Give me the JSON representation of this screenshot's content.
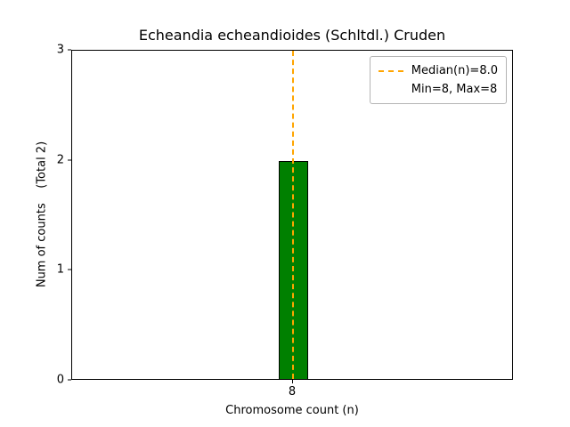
{
  "chart_data": {
    "type": "bar",
    "title": "Echeandia echeandioides (Schltdl.) Cruden",
    "xlabel": "Chromosome count (n)",
    "ylabel": "Num of counts    (Total 2)",
    "total_counts": 2,
    "categories": [
      "8"
    ],
    "values": [
      2
    ],
    "ylim": [
      0,
      3
    ],
    "yticks": [
      0,
      1,
      2,
      3
    ],
    "grid": false,
    "bar_color": "#008000",
    "bar_edge_color": "#000000",
    "median_line": {
      "x_category": "8",
      "value": 8.0,
      "color": "#FFA500",
      "style": "dashed"
    },
    "legend": {
      "position": "upper right",
      "entries": [
        {
          "sample": "dashed-line",
          "color": "#FFA500",
          "label": "Median(n)=8.0"
        },
        {
          "sample": "none",
          "color": "",
          "label": "Min=8, Max=8"
        }
      ]
    }
  }
}
